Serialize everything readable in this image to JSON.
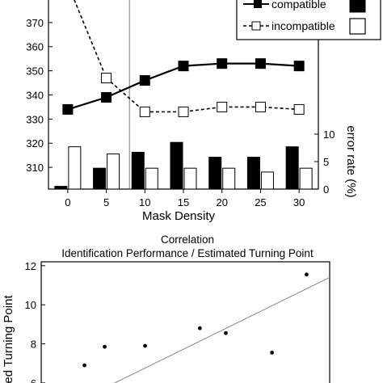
{
  "chart_data": [
    {
      "type": "line",
      "xlabel": "Mask Density",
      "x": [
        0,
        5,
        10,
        15,
        20,
        25,
        30
      ],
      "x_ticks": [
        "0",
        "5",
        "10",
        "15",
        "20",
        "25",
        "30"
      ],
      "y_ticks": [
        "310",
        "320",
        "330",
        "340",
        "350",
        "360",
        "370"
      ],
      "ylim": [
        301,
        380
      ],
      "y2label": "error rate (%)",
      "y2_ticks": [
        "0",
        "5",
        "10"
      ],
      "y2lim": [
        0,
        10
      ],
      "vertical_line_x": 8,
      "legend": {
        "placement": "top-right",
        "entries": [
          "compatible",
          "incompatible"
        ]
      },
      "series": [
        {
          "name": "compatible",
          "kind": "line",
          "marker": "filled-square",
          "values": [
            334,
            339,
            346,
            352,
            353,
            353,
            352
          ]
        },
        {
          "name": "incompatible",
          "kind": "line",
          "dashed": true,
          "marker": "open-square",
          "values": [
            386,
            347,
            333,
            333,
            335,
            335,
            334
          ]
        },
        {
          "name": "compatible",
          "kind": "bar",
          "axis": "y2",
          "fill": "#000000",
          "values": [
            0.5,
            3.8,
            6.7,
            8.5,
            5.8,
            5.8,
            7.7
          ]
        },
        {
          "name": "incompatible",
          "kind": "bar",
          "axis": "y2",
          "fill": "#ffffff",
          "values": [
            7.7,
            6.4,
            3.8,
            3.8,
            3.8,
            3.1,
            3.8
          ]
        }
      ]
    },
    {
      "type": "scatter",
      "title": "Correlation",
      "subtitle": "Identification Performance / Estimated Turning Point",
      "ylabel": "ed Turning Point",
      "y_ticks": [
        "6",
        "8",
        "10",
        "12"
      ],
      "ylim": [
        5.5,
        12.2
      ],
      "xlim": [
        0,
        10
      ],
      "points": [
        {
          "x": 1.5,
          "y": 6.9
        },
        {
          "x": 2.2,
          "y": 7.85
        },
        {
          "x": 3.6,
          "y": 7.9
        },
        {
          "x": 5.5,
          "y": 8.8
        },
        {
          "x": 6.4,
          "y": 8.55
        },
        {
          "x": 8.0,
          "y": 7.55
        },
        {
          "x": 9.2,
          "y": 11.55
        }
      ],
      "trend_line": {
        "x": [
          2.0,
          10
        ],
        "y": [
          5.6,
          11.4
        ]
      }
    }
  ]
}
